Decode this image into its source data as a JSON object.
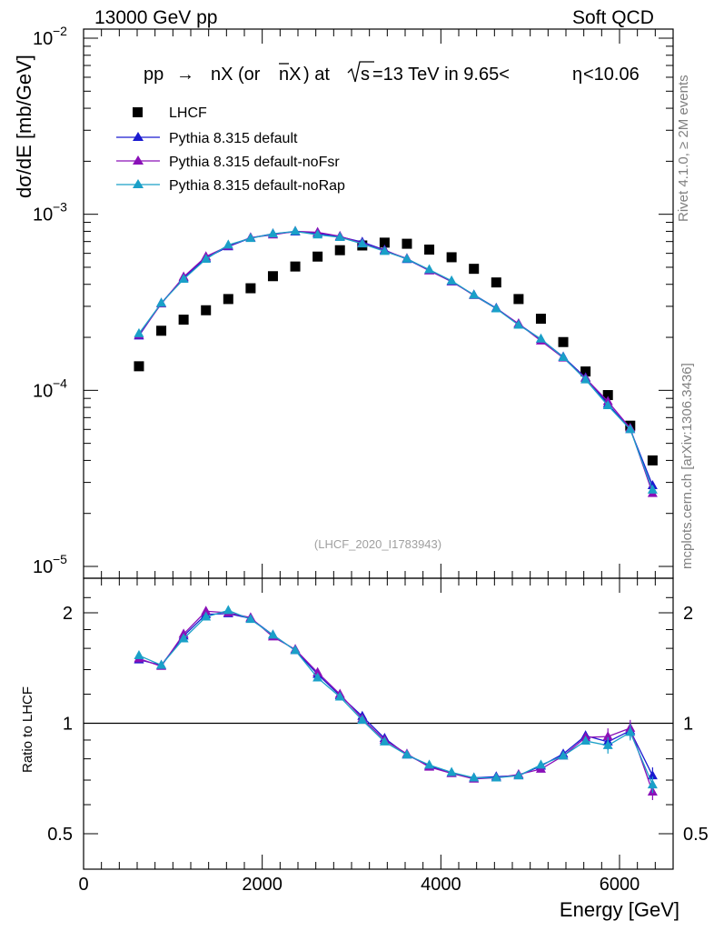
{
  "header": {
    "left": "13000 GeV pp",
    "right": "Soft QCD"
  },
  "side_labels": {
    "rivet": "Rivet 4.1.0, ≥ 2M events",
    "mcplots": "mcplots.cern.ch [arXiv:1306.3436]"
  },
  "chart_data": [
    {
      "type": "scatter",
      "panel": "main",
      "title_parts": [
        "pp",
        "→",
        "nX (or ",
        "nX",
        ") at ",
        "s",
        "=13 TeV in 9.65<",
        "η",
        "<10.06"
      ],
      "ylabel": "dσ/dE [mb/GeV]",
      "yscale": "log",
      "ylim": [
        1e-05,
        0.01
      ],
      "xlim": [
        0,
        6600
      ],
      "yticks": [
        {
          "value": 1e-05,
          "base": "10",
          "exp": "−5"
        },
        {
          "value": 0.0001,
          "base": "10",
          "exp": "−4"
        },
        {
          "value": 0.001,
          "base": "10",
          "exp": "−3"
        },
        {
          "value": 0.01,
          "base": "10",
          "exp": "−2"
        }
      ],
      "reference": "(LHCF_2020_I1783943)",
      "x": [
        620,
        870,
        1120,
        1370,
        1620,
        1870,
        2120,
        2370,
        2620,
        2870,
        3120,
        3370,
        3620,
        3870,
        4120,
        4370,
        4620,
        4870,
        5120,
        5370,
        5620,
        5870,
        6120,
        6370
      ],
      "series": [
        {
          "name": "LHCF",
          "marker": "square",
          "color": "#000000",
          "values": [
            0.000137,
            0.000218,
            0.000252,
            0.000285,
            0.00033,
            0.00038,
            0.000445,
            0.000505,
            0.000575,
            0.000625,
            0.000665,
            0.00069,
            0.00068,
            0.00063,
            0.00057,
            0.00049,
            0.00041,
            0.00033,
            0.000255,
            0.000188,
            0.000128,
            9.4e-05,
            6.3e-05,
            4e-05
          ]
        },
        {
          "name": "Pythia 8.315 default",
          "marker": "triangle",
          "color": "#1a1ad0",
          "values": [
            0.000204,
            0.000313,
            0.000436,
            0.000564,
            0.000655,
            0.000733,
            0.000775,
            0.000795,
            0.00078,
            0.000745,
            0.000695,
            0.000627,
            0.000555,
            0.000479,
            0.000414,
            0.000349,
            0.000293,
            0.000238,
            0.000195,
            0.000155,
            0.000118,
            8.37e-05,
            6e-05,
            2.88e-05
          ]
        },
        {
          "name": "Pythia 8.315 default-noFsr",
          "marker": "triangle",
          "color": "#8a10b8",
          "values": [
            0.000206,
            0.00031,
            0.000441,
            0.000575,
            0.00066,
            0.000737,
            0.000765,
            0.0008,
            0.00079,
            0.00075,
            0.000685,
            0.000622,
            0.000561,
            0.000478,
            0.000416,
            0.000346,
            0.000291,
            0.000239,
            0.000191,
            0.000153,
            0.000117,
            8.65e-05,
            6.1e-05,
            2.6e-05
          ]
        },
        {
          "name": "Pythia 8.315 default-noRap",
          "marker": "triangle",
          "color": "#1aa0c8",
          "values": [
            0.00021,
            0.000313,
            0.000428,
            0.000556,
            0.00067,
            0.00073,
            0.000775,
            0.0008,
            0.000765,
            0.00074,
            0.00068,
            0.000616,
            0.000558,
            0.000485,
            0.000419,
            0.000348,
            0.000291,
            0.000235,
            0.000196,
            0.000154,
            0.000115,
            8.2e-05,
            6e-05,
            2.72e-05
          ]
        }
      ],
      "legend": [
        "LHCF",
        "Pythia 8.315 default",
        "Pythia 8.315 default-noFsr",
        "Pythia 8.315 default-noRap"
      ]
    },
    {
      "type": "line",
      "panel": "ratio",
      "ylabel": "Ratio to LHCF",
      "xlabel": "Energy [GeV]",
      "yscale": "log",
      "ylim": [
        0.39,
        2.3
      ],
      "xlim": [
        0,
        6600
      ],
      "yticks": [
        {
          "value": 0.5,
          "label": "0.5"
        },
        {
          "value": 1,
          "label": "1"
        },
        {
          "value": 2,
          "label": "2"
        }
      ],
      "xticks": [
        {
          "value": 0,
          "label": "0"
        },
        {
          "value": 2000,
          "label": "2000"
        },
        {
          "value": 4000,
          "label": "4000"
        },
        {
          "value": 6000,
          "label": "6000"
        }
      ],
      "x": [
        620,
        870,
        1120,
        1370,
        1620,
        1870,
        2120,
        2370,
        2620,
        2870,
        3120,
        3370,
        3620,
        3870,
        4120,
        4370,
        4620,
        4870,
        5120,
        5370,
        5620,
        5870,
        6120,
        6370
      ],
      "series": [
        {
          "name": "Pythia 8.315 default",
          "color": "#1a1ad0",
          "values": [
            1.49,
            1.44,
            1.73,
            1.98,
            1.99,
            1.93,
            1.74,
            1.58,
            1.36,
            1.19,
            1.045,
            0.91,
            0.82,
            0.765,
            0.73,
            0.71,
            0.715,
            0.72,
            0.765,
            0.825,
            0.925,
            0.89,
            0.955,
            0.72
          ]
        },
        {
          "name": "Pythia 8.315 default-noFsr",
          "color": "#8a10b8",
          "values": [
            1.5,
            1.43,
            1.75,
            2.02,
            2.0,
            1.94,
            1.72,
            1.59,
            1.375,
            1.2,
            1.03,
            0.9,
            0.825,
            0.76,
            0.73,
            0.705,
            0.71,
            0.725,
            0.75,
            0.815,
            0.915,
            0.92,
            0.97,
            0.65
          ]
        },
        {
          "name": "Pythia 8.315 default-noRap",
          "color": "#1aa0c8",
          "values": [
            1.53,
            1.44,
            1.7,
            1.95,
            2.03,
            1.92,
            1.74,
            1.58,
            1.33,
            1.18,
            1.02,
            0.89,
            0.82,
            0.77,
            0.735,
            0.71,
            0.71,
            0.72,
            0.77,
            0.815,
            0.895,
            0.87,
            0.945,
            0.68
          ]
        }
      ]
    }
  ]
}
